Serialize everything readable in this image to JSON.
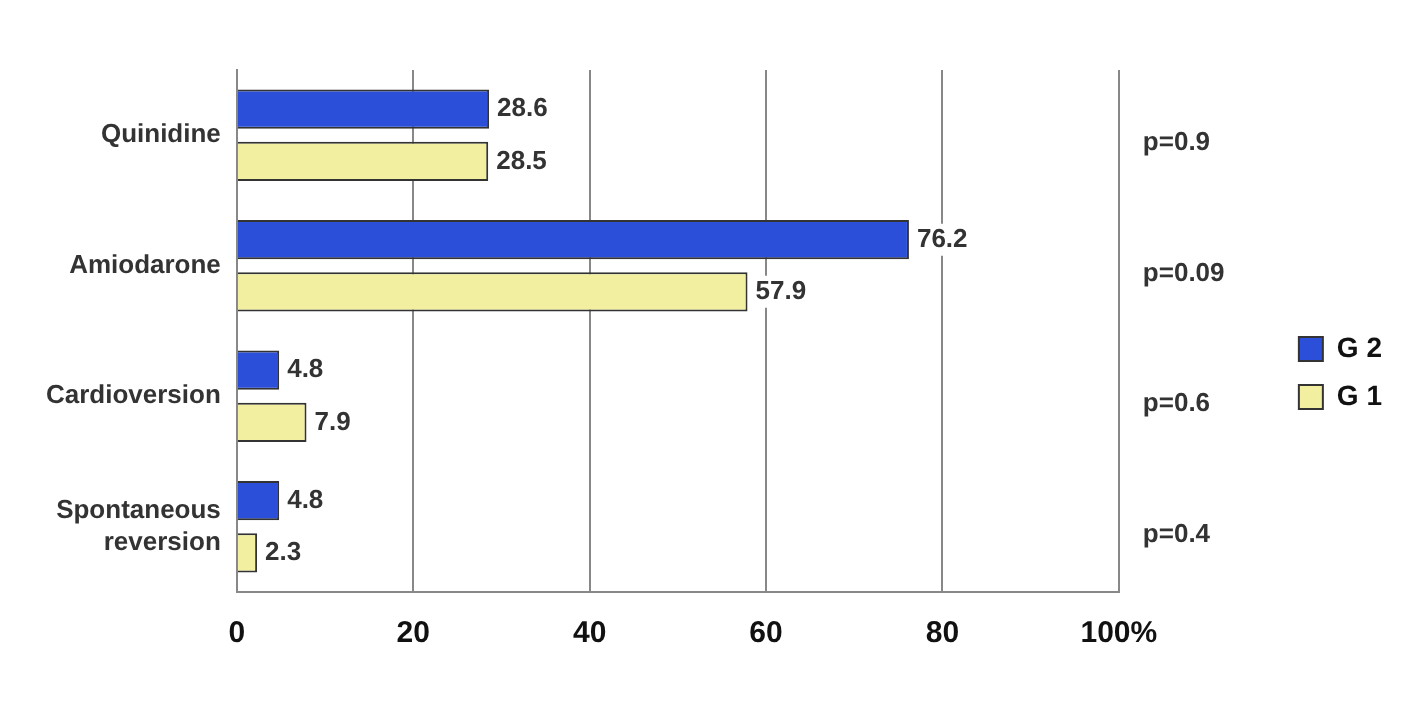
{
  "chart_data": {
    "type": "bar",
    "orientation": "horizontal",
    "categories": [
      "Quinidine",
      "Amiodarone",
      "Cardioversion",
      "Spontaneous reversion"
    ],
    "series": [
      {
        "name": "G 2",
        "color": "#2b4fd8",
        "values": [
          28.6,
          76.2,
          4.8,
          4.8
        ]
      },
      {
        "name": "G 1",
        "color": "#f2f0a0",
        "values": [
          28.5,
          57.9,
          7.9,
          2.3
        ]
      }
    ],
    "xlim": [
      0,
      100
    ],
    "xticks": [
      0,
      20,
      40,
      60,
      80,
      {
        "value": 100,
        "label": "100%"
      }
    ],
    "grid": "x",
    "legend": "right",
    "data_labels": true,
    "annotations": [
      "p=0.9",
      "p=0.09",
      "p=0.6",
      "p=0.4"
    ]
  }
}
